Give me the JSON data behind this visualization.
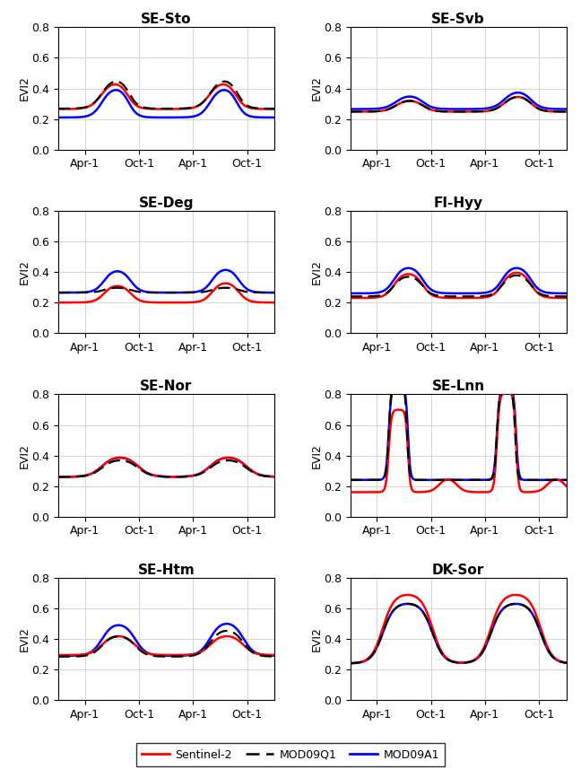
{
  "subplots": [
    {
      "title": "SE-Sto",
      "row": 0,
      "col": 0
    },
    {
      "title": "SE-Svb",
      "row": 0,
      "col": 1
    },
    {
      "title": "SE-Deg",
      "row": 1,
      "col": 0
    },
    {
      "title": "FI-Hyy",
      "row": 1,
      "col": 1
    },
    {
      "title": "SE-Nor",
      "row": 2,
      "col": 0
    },
    {
      "title": "SE-Lnn",
      "row": 2,
      "col": 1
    },
    {
      "title": "SE-Htm",
      "row": 3,
      "col": 0
    },
    {
      "title": "DK-Sor",
      "row": 3,
      "col": 1
    }
  ],
  "x_tick_labels": [
    "Apr-1",
    "Oct-1",
    "Apr-1",
    "Oct-1"
  ],
  "ylabel": "EVI2",
  "ylim": [
    0,
    0.8
  ],
  "yticks": [
    0,
    0.2,
    0.4,
    0.6,
    0.8
  ],
  "colors": {
    "sentinel2": "#FF0000",
    "mod09q1": "#000000",
    "mod09a1": "#0000FF"
  },
  "title_fontsize": 11,
  "axis_fontsize": 9,
  "tick_fontsize": 9
}
